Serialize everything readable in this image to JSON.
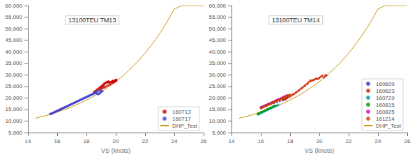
{
  "chart_data": [
    {
      "type": "scatter",
      "title": "13100TEU TM13",
      "xlabel": "VS (knots)",
      "xlim": [
        14,
        26
      ],
      "ylim": [
        5000,
        60000
      ],
      "xticks": [
        14,
        16,
        18,
        20,
        22,
        24,
        26
      ],
      "yticks": [
        5000,
        10000,
        15000,
        20000,
        25000,
        30000,
        35000,
        40000,
        45000,
        50000,
        55000,
        60000
      ],
      "grid": false,
      "legend": "lower right",
      "series": [
        {
          "name": "160713",
          "color": "#cc0000",
          "x": [
            18.5,
            18.55,
            18.6,
            18.65,
            18.7,
            18.75,
            18.8,
            18.85,
            18.9,
            18.95,
            19.0,
            19.05,
            19.1,
            19.15,
            19.2,
            19.25,
            19.3,
            19.35,
            19.4,
            19.45,
            19.5,
            19.55,
            19.6,
            19.65,
            19.7,
            19.75,
            19.8,
            19.85,
            19.9,
            19.95,
            20.0,
            20.05,
            19.2,
            19.3,
            19.4,
            19.5,
            19.0,
            19.1,
            19.2,
            18.9,
            19.0,
            19.1,
            19.2,
            19.3,
            19.4,
            19.5,
            19.6,
            19.7,
            19.8,
            19.9,
            20.0,
            20.05,
            19.8,
            19.9,
            20.0
          ],
          "values": [
            22500,
            22700,
            23000,
            23200,
            23500,
            23700,
            24000,
            24200,
            24500,
            24700,
            25000,
            25200,
            25500,
            25700,
            26000,
            26200,
            26500,
            26700,
            27000,
            26800,
            27000,
            26500,
            27000,
            26800,
            27000,
            27200,
            27500,
            27200,
            27000,
            27500,
            27800,
            28000,
            26200,
            26500,
            26800,
            27200,
            24500,
            24800,
            25200,
            23500,
            24000,
            24200,
            24500,
            24800,
            25200,
            25500,
            25800,
            26200,
            26500,
            26800,
            27200,
            27500,
            27000,
            27500,
            27800
          ]
        },
        {
          "name": "160717",
          "color": "#4444cc",
          "x": [
            15.5,
            15.55,
            15.6,
            15.65,
            15.7,
            15.75,
            15.8,
            15.85,
            15.9,
            15.95,
            16.0,
            16.05,
            16.1,
            16.15,
            16.2,
            16.25,
            16.3,
            16.35,
            16.4,
            16.45,
            16.5,
            16.55,
            16.6,
            16.65,
            16.7,
            16.75,
            16.8,
            16.85,
            16.9,
            16.95,
            17.0,
            17.05,
            17.1,
            17.15,
            17.2,
            17.25,
            17.3,
            17.35,
            17.4,
            17.45,
            17.5,
            17.55,
            17.6,
            17.65,
            17.7,
            17.75,
            17.8,
            17.85,
            17.9,
            17.95,
            18.0,
            18.05,
            18.1,
            18.15,
            18.2,
            18.25,
            18.3,
            18.35,
            18.4,
            18.45,
            18.5,
            18.55,
            18.6,
            18.65,
            18.7,
            18.75,
            18.8,
            18.85,
            18.9,
            18.95,
            19.0,
            19.05,
            19.1,
            15.6,
            15.7,
            15.8,
            15.9,
            16.0,
            16.1,
            16.2,
            16.3,
            16.4,
            16.5,
            16.6,
            16.7,
            16.8,
            16.9,
            17.0,
            17.1,
            17.2,
            17.3,
            17.4,
            17.5,
            17.6,
            17.7,
            17.8,
            17.9,
            18.0,
            18.1,
            18.2,
            18.3,
            18.4,
            18.5,
            18.6,
            18.7,
            18.8,
            18.9,
            19.0
          ],
          "values": [
            13000,
            13100,
            13200,
            13300,
            13500,
            13600,
            13800,
            13900,
            14100,
            14200,
            14400,
            14500,
            14700,
            14800,
            15000,
            15100,
            15300,
            15400,
            15600,
            15700,
            15900,
            16000,
            16200,
            16300,
            16500,
            16600,
            16800,
            16900,
            17100,
            17200,
            17400,
            17500,
            17700,
            17800,
            18000,
            18100,
            18300,
            18400,
            18600,
            18700,
            18900,
            19000,
            19200,
            19300,
            19500,
            19600,
            19800,
            19900,
            20100,
            20200,
            20400,
            20500,
            20700,
            20800,
            21000,
            21100,
            21300,
            21400,
            21600,
            21700,
            21900,
            22000,
            22200,
            22300,
            21800,
            22000,
            21500,
            21800,
            22000,
            22200,
            22500,
            22800,
            23000,
            13300,
            13600,
            13900,
            14200,
            14500,
            14800,
            15100,
            15400,
            15700,
            16000,
            16300,
            16600,
            16900,
            17200,
            17500,
            17800,
            18100,
            18400,
            18700,
            19000,
            19300,
            19600,
            19900,
            20200,
            20500,
            20800,
            21100,
            21400,
            21700,
            22000,
            22300,
            22600,
            22900,
            23100,
            23400
          ]
        },
        {
          "name": "DHP_Test",
          "type": "line",
          "color": "#c8960a",
          "x": [
            14.5,
            15.0,
            15.5,
            16.0,
            16.5,
            17.0,
            17.5,
            18.0,
            18.5,
            19.0,
            19.5,
            20.0,
            20.5,
            21.0,
            21.5,
            22.0,
            22.5,
            23.0,
            23.5,
            24.0,
            24.5,
            25.0,
            25.5,
            26.0
          ],
          "values": [
            11200,
            12000,
            12900,
            13900,
            15000,
            16200,
            17600,
            19100,
            20800,
            22700,
            24800,
            27100,
            29700,
            32600,
            35800,
            39400,
            43400,
            47900,
            52900,
            58500,
            60000,
            60000,
            60000,
            60000
          ]
        }
      ]
    },
    {
      "type": "scatter",
      "title": "13100TEU TM14",
      "xlabel": "VS (knots)",
      "xlim": [
        14,
        26
      ],
      "ylim": [
        5000,
        60000
      ],
      "xticks": [
        14,
        16,
        18,
        20,
        22,
        24,
        26
      ],
      "yticks": [
        5000,
        10000,
        15000,
        20000,
        25000,
        30000,
        35000,
        40000,
        45000,
        50000,
        55000,
        60000
      ],
      "grid": false,
      "legend": "lower right",
      "series": [
        {
          "name": "160609",
          "color": "#3333bb",
          "x": [
            16.0,
            16.05,
            16.1,
            16.15,
            16.2,
            16.25,
            16.3,
            16.35,
            16.4,
            16.45,
            16.5,
            16.55,
            16.6,
            16.65,
            16.7,
            16.75,
            16.8,
            16.85,
            16.9,
            16.95,
            17.0,
            17.05,
            17.1,
            17.15,
            17.2,
            17.25,
            17.3,
            17.35,
            17.4,
            17.45,
            17.5,
            17.55,
            17.6,
            17.65,
            17.7,
            17.75,
            17.8,
            16.1,
            16.3,
            16.5,
            16.7,
            16.9,
            17.1,
            17.3,
            17.5,
            17.7
          ],
          "values": [
            16000,
            16100,
            16200,
            16400,
            16500,
            16600,
            16800,
            16900,
            17000,
            17100,
            17300,
            17400,
            17500,
            17700,
            17800,
            17900,
            18100,
            18200,
            18300,
            18500,
            18600,
            18700,
            18900,
            19000,
            19100,
            19300,
            19400,
            19500,
            19700,
            19800,
            19900,
            20100,
            20200,
            20300,
            20500,
            20600,
            20700,
            16200,
            16600,
            17000,
            17400,
            17800,
            18200,
            18600,
            19000,
            19400
          ]
        },
        {
          "name": "160623",
          "color": "#cc2200",
          "x": [
            17.5,
            17.6,
            17.7,
            17.8,
            17.9,
            18.0,
            18.1,
            18.2,
            18.3,
            18.4,
            18.5,
            18.6,
            18.7,
            18.8,
            18.9,
            19.0,
            19.1,
            19.2,
            19.3,
            19.4,
            19.5,
            19.6,
            19.7,
            19.8,
            19.9,
            20.0,
            20.1,
            20.2,
            20.3,
            20.4,
            20.5,
            17.6,
            17.8,
            18.0,
            18.2,
            18.4,
            18.6,
            18.8,
            19.0,
            19.2,
            19.4,
            19.6,
            19.8,
            20.0,
            20.2,
            20.4
          ],
          "values": [
            19000,
            19300,
            19600,
            20000,
            20300,
            20700,
            21100,
            21500,
            21900,
            22300,
            22800,
            23300,
            23800,
            24300,
            24800,
            25300,
            25900,
            26500,
            27100,
            27700,
            27500,
            27800,
            28100,
            28500,
            28200,
            28700,
            29200,
            29700,
            28800,
            29300,
            29800,
            19400,
            20100,
            20800,
            21600,
            22400,
            23300,
            24200,
            25200,
            26200,
            27200,
            27800,
            28300,
            28800,
            29400,
            29900
          ]
        },
        {
          "name": "160729",
          "color": "#009999",
          "x": [
            15.8,
            15.9,
            16.0,
            16.1,
            16.2,
            16.3,
            16.4,
            16.5,
            16.6,
            16.7,
            16.8,
            16.9,
            17.0,
            17.1,
            17.2,
            15.85,
            16.05,
            16.25,
            16.45,
            16.65,
            16.85,
            17.05
          ],
          "values": [
            12800,
            13100,
            13400,
            13700,
            14000,
            14300,
            14600,
            14900,
            15200,
            15500,
            15800,
            16100,
            16400,
            16700,
            17000,
            13000,
            13600,
            14200,
            14800,
            15400,
            16000,
            16600
          ]
        },
        {
          "name": "160815",
          "color": "#009900",
          "x": [
            15.8,
            15.9,
            16.0,
            16.1,
            16.2,
            16.3,
            16.4,
            16.5,
            16.6,
            16.7,
            16.8,
            16.9,
            17.0,
            15.85,
            16.05,
            16.25,
            16.45,
            16.65,
            16.85
          ],
          "values": [
            13200,
            13500,
            13800,
            14100,
            14400,
            14700,
            15000,
            15300,
            15600,
            15900,
            16200,
            16500,
            16800,
            13400,
            14000,
            14600,
            15200,
            15800,
            16400
          ]
        },
        {
          "name": "160825",
          "color": "#dd00bb",
          "x": [
            16.0,
            16.05,
            16.1,
            16.15,
            16.2,
            16.25,
            16.3,
            16.35,
            16.4,
            16.45,
            16.5,
            16.55,
            16.6,
            16.65,
            16.7,
            16.75,
            16.8,
            16.85,
            16.9,
            16.95,
            17.0,
            17.05,
            17.1,
            17.15,
            17.2,
            17.25,
            17.3,
            17.35,
            17.4,
            17.45,
            17.5,
            17.55,
            17.6,
            17.65,
            17.7,
            17.75,
            17.8
          ],
          "values": [
            15800,
            15950,
            16100,
            16250,
            16400,
            16550,
            16700,
            16850,
            17000,
            17150,
            17300,
            17450,
            17600,
            17750,
            17900,
            18050,
            18200,
            18350,
            18500,
            18650,
            18800,
            18950,
            19100,
            19250,
            19400,
            19550,
            19700,
            19850,
            20000,
            20150,
            20300,
            20450,
            20600,
            20750,
            20900,
            21050,
            21200
          ]
        },
        {
          "name": "161214",
          "color": "#cc4400",
          "x": [
            16.0,
            16.05,
            16.1,
            16.15,
            16.2,
            16.25,
            16.3,
            16.35,
            16.4,
            16.45,
            16.5,
            16.55,
            16.6,
            16.65,
            16.7,
            16.75,
            16.8,
            16.85,
            16.9,
            16.95,
            17.0,
            17.05,
            17.1,
            17.15,
            17.2,
            17.25,
            17.3,
            17.35,
            17.4,
            17.45,
            17.5,
            17.55,
            17.6,
            17.65,
            17.7,
            17.75,
            17.8,
            17.85,
            17.9,
            17.95,
            18.0
          ],
          "values": [
            15500,
            15650,
            15800,
            15950,
            16100,
            16250,
            16400,
            16550,
            16700,
            16850,
            17000,
            17150,
            17300,
            17450,
            17600,
            17750,
            17900,
            18050,
            18200,
            18350,
            18500,
            18650,
            18800,
            18950,
            19100,
            19250,
            19400,
            19550,
            19700,
            19850,
            20000,
            20150,
            20300,
            20450,
            20600,
            20750,
            20900,
            21050,
            21200,
            21350,
            21500
          ]
        },
        {
          "name": "DHP_Test",
          "type": "line",
          "color": "#c8960a",
          "x": [
            14.5,
            15.0,
            15.5,
            16.0,
            16.5,
            17.0,
            17.5,
            18.0,
            18.5,
            19.0,
            19.5,
            20.0,
            20.5,
            21.0,
            21.5,
            22.0,
            22.5,
            23.0,
            23.5,
            24.0,
            24.5,
            25.0,
            25.5,
            26.0
          ],
          "values": [
            11200,
            12000,
            12900,
            13900,
            15000,
            16200,
            17600,
            19100,
            20800,
            22700,
            24800,
            27100,
            29700,
            32600,
            35800,
            39400,
            43400,
            47900,
            52900,
            58500,
            60000,
            60000,
            60000,
            60000
          ]
        }
      ]
    }
  ]
}
